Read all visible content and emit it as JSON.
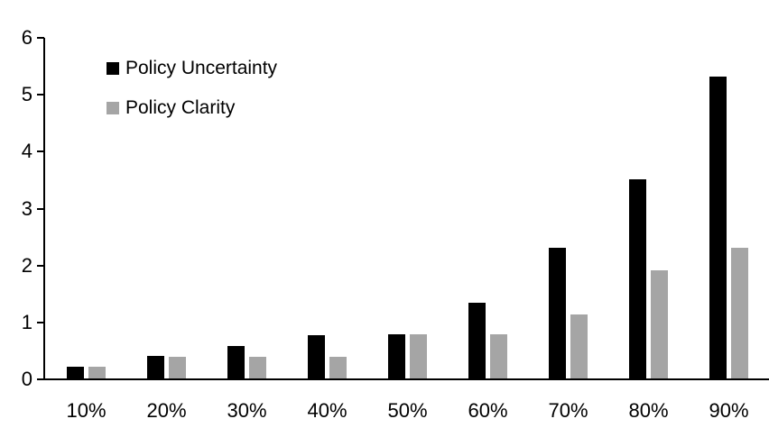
{
  "chart_data": {
    "type": "bar",
    "title": "",
    "xlabel": "",
    "ylabel": "",
    "categories": [
      "10%",
      "20%",
      "30%",
      "40%",
      "50%",
      "60%",
      "70%",
      "80%",
      "90%"
    ],
    "series": [
      {
        "name": "Policy Uncertainty",
        "color": "#000000",
        "values": [
          0.2,
          0.4,
          0.57,
          0.76,
          0.78,
          1.33,
          2.3,
          3.5,
          5.3
        ]
      },
      {
        "name": "Policy Clarity",
        "color": "#a5a5a5",
        "values": [
          0.2,
          0.38,
          0.38,
          0.38,
          0.77,
          0.77,
          1.13,
          1.9,
          2.3
        ]
      }
    ],
    "y_ticks": [
      0,
      1,
      2,
      3,
      4,
      5,
      6
    ],
    "ylim": [
      0,
      6
    ],
    "grid": false,
    "legend_position": "top-left",
    "axis_color": "#000000",
    "background_color": "#ffffff"
  }
}
